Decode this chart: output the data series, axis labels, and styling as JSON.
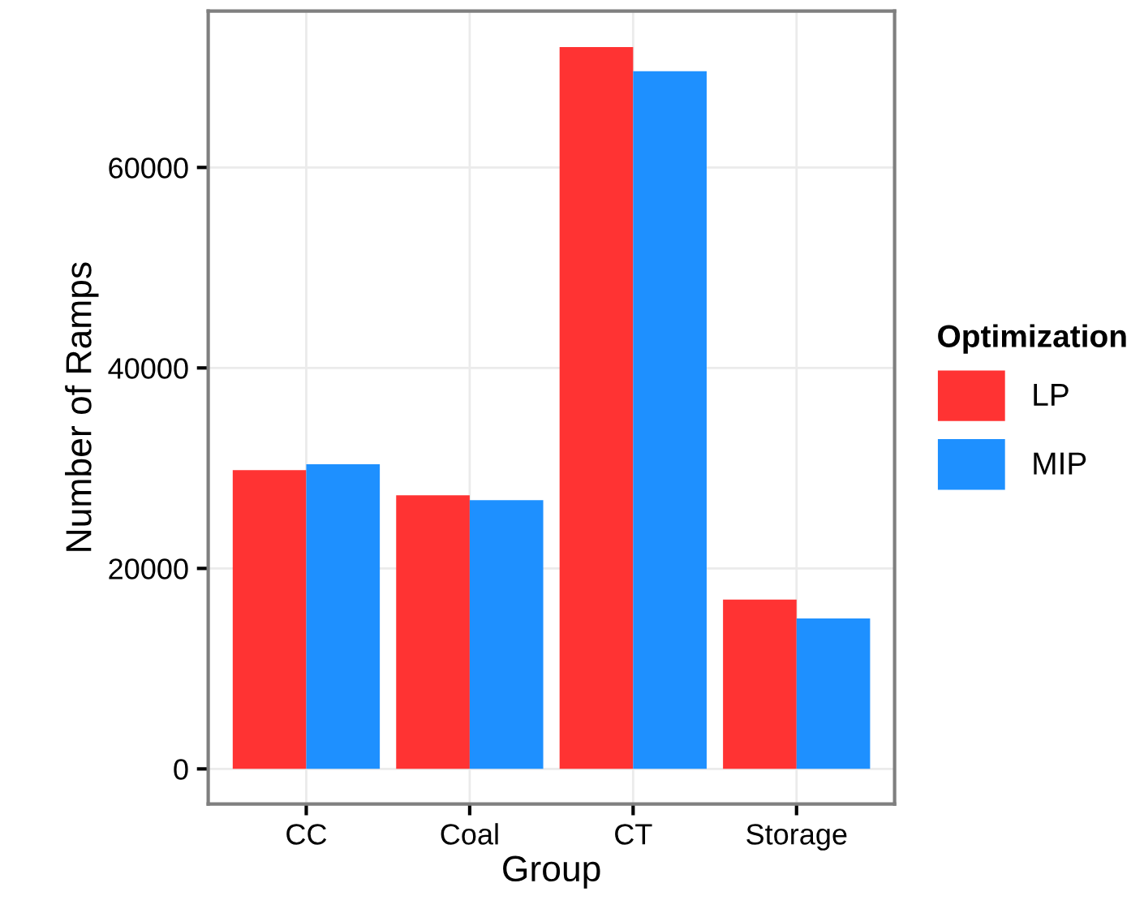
{
  "chart_data": {
    "type": "bar",
    "xlabel": "Group",
    "ylabel": "Number of Ramps",
    "legend_title": "Optimization",
    "categories": [
      "CC",
      "Coal",
      "CT",
      "Storage"
    ],
    "series": [
      {
        "name": "LP",
        "color": "#ff3333",
        "values": [
          29800,
          27300,
          72000,
          16900
        ]
      },
      {
        "name": "MIP",
        "color": "#1e90ff",
        "values": [
          30400,
          26800,
          69600,
          15000
        ]
      }
    ],
    "ylim": [
      -3500,
      75600
    ],
    "yticks": [
      0,
      20000,
      40000,
      60000
    ],
    "grid": true,
    "legend": "right"
  }
}
